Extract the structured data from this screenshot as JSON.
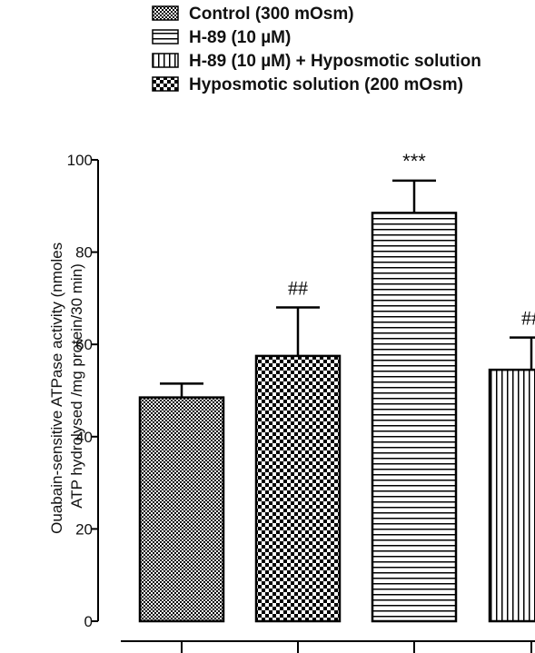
{
  "chart_data": {
    "type": "bar",
    "title": "",
    "ylabel": "Ouabain-sensitive ATPase activity (nmoles ATP hydrolysed /mg protein/30 min)",
    "ylabel_lines": [
      "Ouabain-sensitive ATPase activity (nmoles",
      "ATP hydrolysed /mg protein/30 min)"
    ],
    "xlabel": "",
    "ylim": [
      0,
      100
    ],
    "yticks": [
      0,
      20,
      40,
      60,
      80,
      100
    ],
    "grid": false,
    "legend_position": "top",
    "legend": [
      {
        "label": "Control (300 mOsm)",
        "pattern": "pat-fine-dots"
      },
      {
        "label": "H-89 (10 µM)",
        "pattern": "pat-hlines"
      },
      {
        "label": "H-89 (10 µM) + Hyposmotic solution",
        "pattern": "pat-vlines"
      },
      {
        "label": "Hyposmotic solution (200 mOsm)",
        "pattern": "pat-checker"
      }
    ],
    "bars": [
      {
        "value": 48.5,
        "error": 3,
        "pattern": "pat-fine-dots",
        "annotation": ""
      },
      {
        "value": 57.5,
        "error": 10.5,
        "pattern": "pat-checker",
        "annotation": "##"
      },
      {
        "value": 88.5,
        "error": 7,
        "pattern": "pat-hlines",
        "annotation": "***"
      },
      {
        "value": 54.5,
        "error": 7,
        "pattern": "pat-vlines",
        "annotation": "##"
      }
    ]
  }
}
